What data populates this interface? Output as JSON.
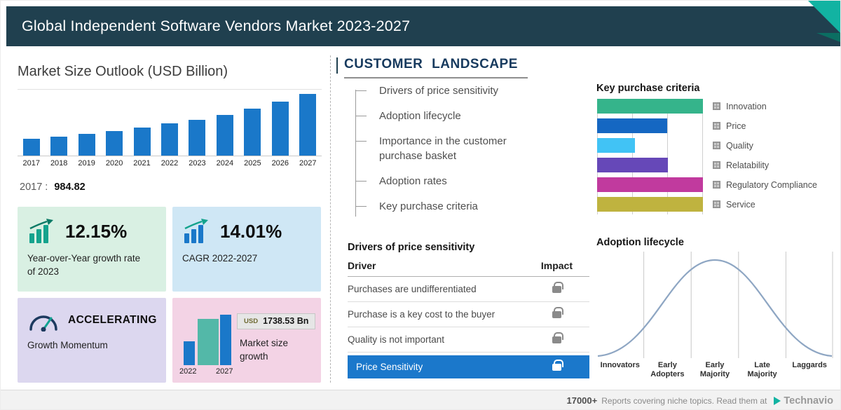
{
  "header": {
    "title": "Global Independent Software Vendors Market 2023-2027"
  },
  "market_size": {
    "title": "Market Size Outlook (USD Billion)",
    "base_prefix": "2017 :",
    "base_value": "984.82",
    "cards": {
      "yoy": {
        "value": "12.15%",
        "label": "Year-over-Year growth rate of 2023"
      },
      "cagr": {
        "value": "14.01%",
        "label": "CAGR 2022-2027"
      },
      "momentum": {
        "value": "ACCELERATING",
        "label": "Growth Momentum"
      },
      "growth": {
        "badge_currency": "USD",
        "badge_value": "1738.53 Bn",
        "label": "Market size growth",
        "year_start": "2022",
        "year_end": "2027"
      }
    }
  },
  "chart_data": [
    {
      "type": "bar",
      "title": "Market Size Outlook (USD Billion)",
      "categories": [
        "2017",
        "2018",
        "2019",
        "2020",
        "2021",
        "2022",
        "2023",
        "2024",
        "2025",
        "2026",
        "2027"
      ],
      "values": [
        984.82,
        1120,
        1265,
        1430,
        1645,
        1878,
        2106,
        2400,
        2745,
        3155,
        3616
      ],
      "bar_color": "#1a78c9",
      "annotation": "2017 : 984.82",
      "grid": false,
      "legend_position": "none"
    },
    {
      "type": "bar",
      "orientation": "horizontal",
      "title": "Key purchase criteria",
      "categories": [
        "Innovation",
        "Price",
        "Quality",
        "Relatability",
        "Regulatory Compliance",
        "Service"
      ],
      "values": [
        100,
        66,
        36,
        67,
        100,
        100
      ],
      "colors": [
        "#35b48b",
        "#1567c2",
        "#41c3f5",
        "#6648b8",
        "#c13a9e",
        "#bfb33f"
      ],
      "xlim": [
        0,
        100
      ],
      "grid": true,
      "legend_position": "right"
    },
    {
      "type": "area",
      "curve": "bell",
      "title": "Adoption lifecycle",
      "stages": [
        "Innovators",
        "Early Adopters",
        "Early Majority",
        "Late Majority",
        "Laggards"
      ],
      "line_color": "#8ea6c3",
      "grid": true
    }
  ],
  "customer_landscape": {
    "title": "CUSTOMER LANDSCAPE",
    "items": [
      "Drivers of price sensitivity",
      "Adoption lifecycle",
      "Importance in the customer purchase basket",
      "Adoption rates",
      "Key purchase criteria"
    ]
  },
  "price_drivers": {
    "title": "Drivers of price sensitivity",
    "columns": {
      "driver": "Driver",
      "impact": "Impact"
    },
    "rows": [
      {
        "label": "Purchases are undifferentiated",
        "locked": true,
        "highlight": false
      },
      {
        "label": "Purchase is a key cost to the buyer",
        "locked": true,
        "highlight": false
      },
      {
        "label": "Quality is not important",
        "locked": true,
        "highlight": false
      },
      {
        "label": "Price Sensitivity",
        "locked": true,
        "highlight": true
      }
    ]
  },
  "footer": {
    "count": "17000+",
    "text": "Reports covering niche topics. Read them at",
    "brand": "Technavio"
  },
  "colors": {
    "header_bg": "#20404f",
    "accent_teal": "#12b3a2",
    "bar_blue": "#1a78c9",
    "highlight_row": "#1b78cb",
    "card_mint": "#d9f0e3",
    "card_blue": "#cfe7f5",
    "card_lavender": "#dcd7ef",
    "card_pink": "#f3d3e5"
  }
}
